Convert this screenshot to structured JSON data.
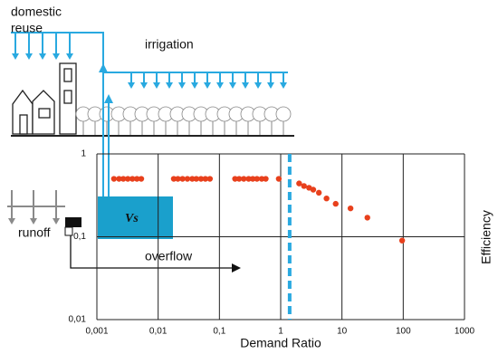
{
  "chart_data": {
    "type": "scatter",
    "x_label": "Demand Ratio",
    "y_label": "Efficiency",
    "log_x": true,
    "log_y": true,
    "grid": true,
    "xlim": [
      0.001,
      1000
    ],
    "ylim": [
      0.01,
      1
    ],
    "xticks": [
      {
        "value": 0.001,
        "label": "0,001"
      },
      {
        "value": 0.01,
        "label": "0,01"
      },
      {
        "value": 0.1,
        "label": "0,1"
      },
      1,
      10,
      100,
      1000
    ],
    "yticks": [
      {
        "value": 0.01,
        "label": "0,01"
      },
      {
        "value": 0.1,
        "label": "0,1"
      },
      1
    ],
    "threshold": 1.4,
    "threshold_color": "#29a9e0",
    "series": [
      {
        "color": "#e8401c",
        "x": [
          0.0019,
          0.0023,
          0.0027,
          0.0032,
          0.0038,
          0.0045,
          0.0053,
          0.018,
          0.021,
          0.025,
          0.03,
          0.036,
          0.042,
          0.05,
          0.059,
          0.07,
          0.18,
          0.21,
          0.25,
          0.3,
          0.35,
          0.41,
          0.49,
          0.57,
          0.93,
          2.0,
          2.4,
          2.9,
          3.4,
          4.2,
          5.6,
          7.9,
          13.8,
          26,
          96
        ],
        "values": [
          0.5,
          0.5,
          0.5,
          0.5,
          0.5,
          0.5,
          0.5,
          0.5,
          0.5,
          0.5,
          0.5,
          0.5,
          0.5,
          0.5,
          0.5,
          0.5,
          0.5,
          0.5,
          0.5,
          0.5,
          0.5,
          0.5,
          0.5,
          0.5,
          0.5,
          0.44,
          0.41,
          0.39,
          0.37,
          0.34,
          0.29,
          0.25,
          0.22,
          0.17,
          0.09
        ]
      }
    ],
    "annotations": [
      "domestic",
      "reuse",
      "irrigation",
      "runoff",
      "overflow",
      "Vs"
    ]
  }
}
